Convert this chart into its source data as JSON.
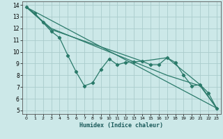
{
  "title": "",
  "xlabel": "Humidex (Indice chaleur)",
  "bg_color": "#cce8e8",
  "grid_color": "#aacccc",
  "line_color": "#2a7a6a",
  "xlim": [
    -0.5,
    23.5
  ],
  "ylim": [
    4.7,
    14.3
  ],
  "xtick_labels": [
    "0",
    "1",
    "2",
    "3",
    "4",
    "5",
    "6",
    "7",
    "8",
    "9",
    "10",
    "11",
    "12",
    "13",
    "14",
    "15",
    "16",
    "17",
    "18",
    "19",
    "20",
    "21",
    "22",
    "23"
  ],
  "xtick_vals": [
    0,
    1,
    2,
    3,
    4,
    5,
    6,
    7,
    8,
    9,
    10,
    11,
    12,
    13,
    14,
    15,
    16,
    17,
    18,
    19,
    20,
    21,
    22,
    23
  ],
  "ytick_vals": [
    5,
    6,
    7,
    8,
    9,
    10,
    11,
    12,
    13,
    14
  ],
  "line1_x": [
    0,
    1,
    2,
    3,
    4,
    5,
    6,
    7,
    8,
    9,
    10,
    11,
    12,
    13,
    14,
    15,
    16,
    17,
    18,
    19,
    20,
    21,
    22,
    23
  ],
  "line1_y": [
    13.8,
    13.3,
    12.5,
    11.75,
    11.2,
    9.7,
    8.3,
    7.1,
    7.35,
    8.5,
    9.4,
    8.9,
    9.1,
    9.15,
    9.2,
    8.9,
    8.9,
    9.5,
    9.1,
    8.0,
    7.1,
    7.2,
    6.5,
    5.2
  ],
  "line2_x": [
    0,
    23
  ],
  "line2_y": [
    13.8,
    5.2
  ],
  "line3_x": [
    0,
    3,
    14,
    17,
    21,
    23
  ],
  "line3_y": [
    13.8,
    11.9,
    9.2,
    9.5,
    7.2,
    5.2
  ],
  "line4_x": [
    0,
    3,
    17,
    21,
    23
  ],
  "line4_y": [
    13.8,
    12.0,
    8.0,
    7.1,
    5.2
  ]
}
